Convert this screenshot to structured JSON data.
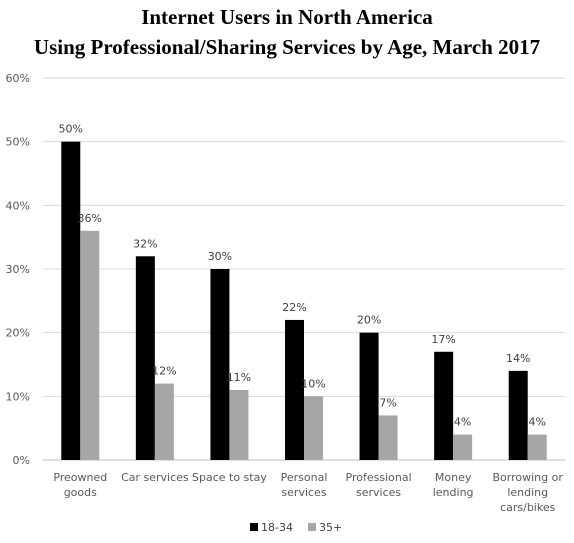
{
  "chart_data": {
    "type": "bar",
    "title_lines": [
      "Internet Users in North America",
      "Using Professional/Sharing Services by Age, March 2017"
    ],
    "categories": [
      [
        "Preowned",
        "goods"
      ],
      [
        "Car services"
      ],
      [
        "Space to stay"
      ],
      [
        "Personal",
        "services"
      ],
      [
        "Professional",
        "services"
      ],
      [
        "Money",
        "lending"
      ],
      [
        "Borrowing or",
        "lending",
        "cars/bikes"
      ]
    ],
    "series": [
      {
        "name": "18-34",
        "color": "#000000",
        "values": [
          50,
          32,
          30,
          22,
          20,
          17,
          14
        ],
        "labels": [
          "50%",
          "32%",
          "30%",
          "22%",
          "20%",
          "17%",
          "14%"
        ]
      },
      {
        "name": "35+",
        "color": "#a6a6a6",
        "values": [
          36,
          12,
          11,
          10,
          7,
          4,
          4
        ],
        "labels": [
          "36%",
          "12%",
          "11%",
          "10%",
          "7%",
          "4%",
          "4%"
        ]
      }
    ],
    "ylim": [
      0,
      60
    ],
    "yticks": [
      0,
      10,
      20,
      30,
      40,
      50,
      60
    ],
    "ytick_labels": [
      "0%",
      "10%",
      "20%",
      "30%",
      "40%",
      "50%",
      "60%"
    ],
    "grid": true,
    "legend_position": "bottom"
  }
}
